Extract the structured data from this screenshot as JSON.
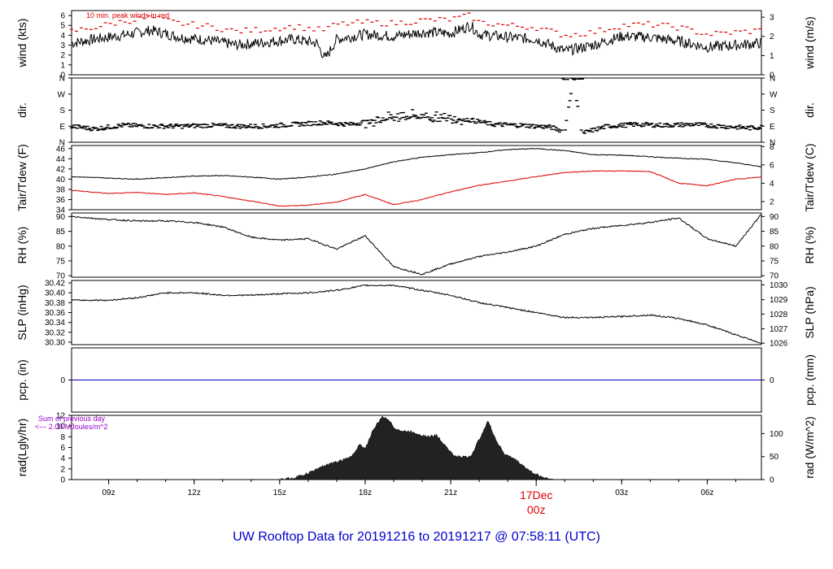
{
  "title": "UW Rooftop Data for 20191216  to  20191217 @ 07:58:11  (UTC)",
  "colors": {
    "title": "#0000cc",
    "red": "#dd0000",
    "purple": "#9900cc",
    "blue": "#0000cc",
    "black": "#000000"
  },
  "x_axis": {
    "tick_labels": [
      "09z",
      "12z",
      "15z",
      "18z",
      "21z",
      "03z",
      "06z"
    ],
    "date_marker": {
      "date": "17Dec",
      "time": "00z"
    }
  },
  "chart_data": [
    {
      "type": "line",
      "name": "wind",
      "ylabel_left": "wind (kts)",
      "ylabel_right": "wind (m/s)",
      "left_ticks": [
        "0",
        "1",
        "2",
        "3",
        "4",
        "5",
        "6"
      ],
      "right_ticks": [
        "0",
        "1",
        "2",
        "3"
      ],
      "ylim": [
        0,
        6.5
      ],
      "annotation": "10 min. peak winds in red",
      "series": [
        {
          "name": "wind",
          "color": "#000000",
          "x": [
            7.7,
            8.5,
            9.5,
            10.5,
            11.5,
            12.5,
            13.5,
            14.5,
            15.5,
            16.3,
            16.6,
            17,
            18,
            19,
            20,
            21,
            21.7,
            22,
            23,
            24,
            25,
            26,
            27,
            28,
            29,
            30,
            31,
            31.9
          ],
          "y": [
            3.2,
            3.6,
            4.0,
            4.5,
            3.8,
            3.5,
            3.0,
            3.3,
            3.6,
            3.2,
            1.6,
            3.6,
            4.1,
            3.9,
            4.3,
            4.2,
            5.0,
            4.1,
            3.8,
            3.6,
            2.4,
            3.0,
            3.9,
            3.8,
            3.4,
            2.8,
            3.0,
            3.2
          ]
        },
        {
          "name": "peak",
          "color": "#dd0000",
          "style": "dash",
          "x": [
            7.7,
            8.5,
            9.5,
            10.5,
            11.5,
            12.5,
            13.5,
            14.5,
            15.5,
            16.5,
            17,
            18,
            19,
            20,
            21,
            21.7,
            22,
            23,
            24,
            25,
            26,
            27,
            28,
            29,
            30,
            31,
            31.9
          ],
          "y": [
            4.4,
            4.8,
            5.4,
            5.8,
            5.2,
            4.9,
            4.4,
            4.6,
            4.9,
            4.5,
            5.1,
            5.3,
            5.2,
            5.5,
            5.6,
            6.0,
            5.3,
            5.0,
            4.8,
            4.0,
            4.3,
            5.0,
            5.1,
            4.8,
            4.1,
            4.3,
            4.5
          ]
        }
      ]
    },
    {
      "type": "scatter",
      "name": "dir",
      "ylabel_left": "dir.",
      "ylabel_right": "dir.",
      "left_ticks": [
        "N",
        "E",
        "S",
        "W",
        "N"
      ],
      "right_ticks": [
        "N",
        "E",
        "S",
        "W",
        "N"
      ],
      "ylim": [
        0,
        360
      ],
      "series": [
        {
          "name": "dir",
          "color": "#000000",
          "x": [
            7.7,
            8.5,
            9.5,
            10.5,
            11.5,
            12.5,
            13.5,
            14.5,
            15.5,
            16.5,
            17.5,
            18.5,
            19.5,
            20.5,
            21.5,
            22.5,
            23.5,
            24.5,
            25.0,
            25.3,
            25.6,
            26.5,
            27.5,
            28.5,
            29.5,
            30.5,
            31.5,
            31.9
          ],
          "y": [
            90,
            75,
            95,
            90,
            90,
            95,
            90,
            90,
            100,
            110,
            100,
            130,
            150,
            140,
            130,
            100,
            95,
            85,
            60,
            355,
            50,
            90,
            100,
            95,
            100,
            90,
            80,
            85
          ]
        }
      ]
    },
    {
      "type": "line",
      "name": "temp",
      "ylabel_left": "Tair/Tdew (F)",
      "ylabel_right": "Tair/Tdew (C)",
      "left_ticks": [
        "34",
        "36",
        "38",
        "40",
        "42",
        "44",
        "46"
      ],
      "right_ticks": [
        "2",
        "4",
        "6",
        "8"
      ],
      "ylim": [
        34,
        46.6
      ],
      "series": [
        {
          "name": "Tair",
          "color": "#000000",
          "x": [
            7.7,
            9,
            10,
            11,
            12,
            13,
            14,
            15,
            16,
            17,
            18,
            19,
            20,
            21,
            22,
            23,
            24,
            25,
            26,
            27,
            28,
            29,
            30,
            31,
            31.9
          ],
          "y": [
            40.5,
            40.2,
            40.0,
            40.3,
            40.6,
            40.7,
            40.4,
            40.0,
            40.4,
            41.0,
            42.0,
            43.4,
            44.3,
            44.8,
            45.2,
            45.8,
            46.0,
            45.6,
            44.8,
            44.7,
            44.4,
            44.1,
            43.9,
            43.2,
            42.4
          ]
        },
        {
          "name": "Tdew",
          "color": "#dd0000",
          "x": [
            7.7,
            9,
            10,
            11,
            12,
            13,
            14,
            15,
            16,
            17,
            18,
            19,
            20,
            21,
            22,
            23,
            24,
            25,
            26,
            27,
            28,
            29,
            30,
            31,
            31.9
          ],
          "y": [
            37.8,
            37.2,
            37.4,
            37.0,
            37.3,
            36.6,
            35.7,
            34.7,
            34.9,
            35.5,
            37.0,
            35.0,
            36.0,
            37.5,
            38.8,
            39.6,
            40.5,
            41.3,
            41.6,
            41.6,
            41.5,
            39.2,
            38.7,
            40.0,
            40.4
          ]
        }
      ]
    },
    {
      "type": "line",
      "name": "rh",
      "ylabel_left": "RH (%)",
      "ylabel_right": "RH (%)",
      "left_ticks": [
        "70",
        "75",
        "80",
        "85",
        "90"
      ],
      "right_ticks": [
        "70",
        "75",
        "80",
        "85",
        "90"
      ],
      "ylim": [
        69.5,
        91.2
      ],
      "series": [
        {
          "name": "RH",
          "color": "#000000",
          "x": [
            7.7,
            9,
            10,
            11,
            12,
            13,
            14,
            15,
            16,
            17,
            18,
            19,
            20,
            21,
            22,
            23,
            24,
            25,
            26,
            27,
            28,
            29,
            29.5,
            30,
            31,
            31.9
          ],
          "y": [
            90.0,
            89.0,
            88.5,
            88.5,
            88.0,
            86.5,
            83.0,
            82.0,
            82.5,
            79.0,
            83.5,
            73.0,
            70.5,
            74.0,
            76.5,
            78.0,
            80.0,
            84.0,
            86.0,
            87.0,
            88.0,
            89.5,
            86.0,
            82.5,
            80.0,
            90.8
          ]
        }
      ]
    },
    {
      "type": "line",
      "name": "slp",
      "ylabel_left": "SLP (inHg)",
      "ylabel_right": "SLP (hPa)",
      "left_ticks": [
        "30.30",
        "30.32",
        "30.34",
        "30.36",
        "30.38",
        "30.40",
        "30.42"
      ],
      "right_ticks": [
        "1026",
        "1027",
        "1028",
        "1029",
        "1030"
      ],
      "ylim": [
        30.295,
        30.425
      ],
      "series": [
        {
          "name": "SLP",
          "color": "#000000",
          "x": [
            7.7,
            9,
            10,
            11,
            12,
            13,
            14,
            15,
            16,
            17,
            18,
            19,
            20,
            21,
            22,
            23,
            24,
            25,
            26,
            27,
            28,
            29,
            30,
            31,
            31.9
          ],
          "y": [
            30.385,
            30.385,
            30.39,
            30.4,
            30.4,
            30.395,
            30.395,
            30.398,
            30.4,
            30.405,
            30.415,
            30.415,
            30.405,
            30.395,
            30.38,
            30.37,
            30.36,
            30.35,
            30.35,
            30.352,
            30.355,
            30.348,
            30.335,
            30.315,
            30.298
          ]
        }
      ]
    },
    {
      "type": "line",
      "name": "pcp",
      "ylabel_left": "pcp. (in)",
      "ylabel_right": "pcp. (mm)",
      "left_ticks": [
        "0"
      ],
      "right_ticks": [
        "0"
      ],
      "ylim": [
        -1,
        1
      ],
      "series": [
        {
          "name": "pcp",
          "color": "#0000cc",
          "x": [
            7.7,
            31.9
          ],
          "y": [
            0,
            0
          ]
        }
      ]
    },
    {
      "type": "area",
      "name": "rad",
      "ylabel_left": "rad(Lgly/hr)",
      "ylabel_right": "rad (W/m^2)",
      "left_ticks": [
        "0",
        "2",
        "4",
        "6",
        "8",
        "10",
        "12"
      ],
      "right_ticks": [
        "0",
        "50",
        "100"
      ],
      "ylim": [
        0,
        12
      ],
      "annotation": [
        "Sum of previous day",
        "<--- 2.08 MJoules/m^2"
      ],
      "series": [
        {
          "name": "rad",
          "color": "#222222",
          "x": [
            15.0,
            15.5,
            16.0,
            16.5,
            17.0,
            17.5,
            17.8,
            18.0,
            18.3,
            18.6,
            18.8,
            19.0,
            19.3,
            19.6,
            19.9,
            20.2,
            20.5,
            20.8,
            21.1,
            21.4,
            21.7,
            22.0,
            22.3,
            22.6,
            22.9,
            23.2,
            23.5,
            23.8,
            24.2,
            24.6
          ],
          "y": [
            0.0,
            0.3,
            1.2,
            2.5,
            3.3,
            4.2,
            6.5,
            5.8,
            9.5,
            11.7,
            11.4,
            9.8,
            9.0,
            9.0,
            8.5,
            8.0,
            8.3,
            6.5,
            4.5,
            4.2,
            4.3,
            7.5,
            11.0,
            7.3,
            4.7,
            4.0,
            2.8,
            1.5,
            0.5,
            0.0
          ]
        }
      ]
    }
  ]
}
